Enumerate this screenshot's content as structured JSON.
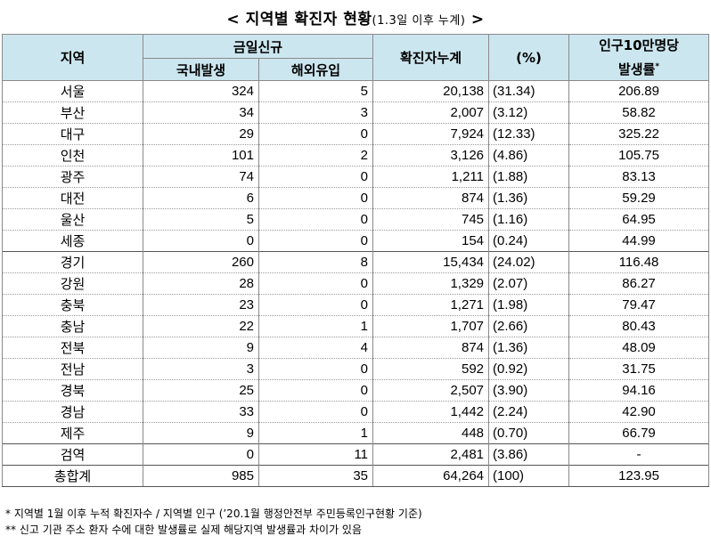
{
  "title": {
    "main": "< 지역별 확진자 현황",
    "sub": "(1.3일 이후 누계)",
    "close": " >"
  },
  "headers": {
    "region": "지역",
    "new_today": "금일신규",
    "domestic": "국내발생",
    "overseas": "해외유입",
    "cumulative": "확진자누계",
    "percent": "(%)",
    "rate_line1": "인구10만명당",
    "rate_line2": "발생률",
    "rate_mark": "*"
  },
  "rows": [
    {
      "region": "서울",
      "domestic": "324",
      "overseas": "5",
      "cumulative": "20,138",
      "percent": "(31.34)",
      "rate": "206.89"
    },
    {
      "region": "부산",
      "domestic": "34",
      "overseas": "3",
      "cumulative": "2,007",
      "percent": "(3.12)",
      "rate": "58.82"
    },
    {
      "region": "대구",
      "domestic": "29",
      "overseas": "0",
      "cumulative": "7,924",
      "percent": "(12.33)",
      "rate": "325.22"
    },
    {
      "region": "인천",
      "domestic": "101",
      "overseas": "2",
      "cumulative": "3,126",
      "percent": "(4.86)",
      "rate": "105.75"
    },
    {
      "region": "광주",
      "domestic": "74",
      "overseas": "0",
      "cumulative": "1,211",
      "percent": "(1.88)",
      "rate": "83.13"
    },
    {
      "region": "대전",
      "domestic": "6",
      "overseas": "0",
      "cumulative": "874",
      "percent": "(1.36)",
      "rate": "59.29"
    },
    {
      "region": "울산",
      "domestic": "5",
      "overseas": "0",
      "cumulative": "745",
      "percent": "(1.16)",
      "rate": "64.95"
    },
    {
      "region": "세종",
      "domestic": "0",
      "overseas": "0",
      "cumulative": "154",
      "percent": "(0.24)",
      "rate": "44.99"
    },
    {
      "region": "경기",
      "domestic": "260",
      "overseas": "8",
      "cumulative": "15,434",
      "percent": "(24.02)",
      "rate": "116.48"
    },
    {
      "region": "강원",
      "domestic": "28",
      "overseas": "0",
      "cumulative": "1,329",
      "percent": "(2.07)",
      "rate": "86.27"
    },
    {
      "region": "충북",
      "domestic": "23",
      "overseas": "0",
      "cumulative": "1,271",
      "percent": "(1.98)",
      "rate": "79.47"
    },
    {
      "region": "충남",
      "domestic": "22",
      "overseas": "1",
      "cumulative": "1,707",
      "percent": "(2.66)",
      "rate": "80.43"
    },
    {
      "region": "전북",
      "domestic": "9",
      "overseas": "4",
      "cumulative": "874",
      "percent": "(1.36)",
      "rate": "48.09"
    },
    {
      "region": "전남",
      "domestic": "3",
      "overseas": "0",
      "cumulative": "592",
      "percent": "(0.92)",
      "rate": "31.75"
    },
    {
      "region": "경북",
      "domestic": "25",
      "overseas": "0",
      "cumulative": "2,507",
      "percent": "(3.90)",
      "rate": "94.16"
    },
    {
      "region": "경남",
      "domestic": "33",
      "overseas": "0",
      "cumulative": "1,442",
      "percent": "(2.24)",
      "rate": "42.90"
    },
    {
      "region": "제주",
      "domestic": "9",
      "overseas": "1",
      "cumulative": "448",
      "percent": "(0.70)",
      "rate": "66.79"
    },
    {
      "region": "검역",
      "domestic": "0",
      "overseas": "11",
      "cumulative": "2,481",
      "percent": "(3.86)",
      "rate": "-"
    }
  ],
  "total": {
    "region": "총합계",
    "domestic": "985",
    "overseas": "35",
    "cumulative": "64,264",
    "percent": "(100)",
    "rate": "123.95"
  },
  "notes": [
    "* 지역별 1월 이후 누적 확진자수 / 지역별 인구 (’20.1월 행정안전부 주민등록인구현황 기준)",
    "** 신고 기관 주소 환자 수에 대한 발생률로 실제 해당지역 발생률과 차이가 있음"
  ]
}
